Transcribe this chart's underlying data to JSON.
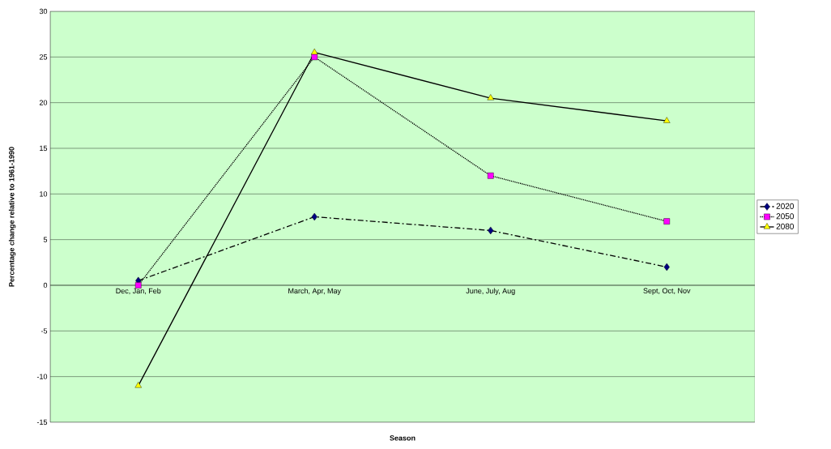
{
  "chart_data": {
    "type": "line",
    "xlabel": "Season",
    "ylabel": "Percentage change relative to 1961-1990",
    "categories": [
      "Dec, Jan, Feb",
      "March, Apr, May",
      "June, July, Aug",
      "Sept, Oct, Nov"
    ],
    "series": [
      {
        "name": "2020",
        "color": "#000080",
        "marker": "diamond",
        "line_style": "dashdot",
        "values": [
          0.5,
          7.5,
          6,
          2
        ]
      },
      {
        "name": "2050",
        "color": "#ff00ff",
        "marker": "square",
        "line_style": "dotted",
        "values": [
          0,
          25,
          12,
          7
        ]
      },
      {
        "name": "2080",
        "color": "#ffff00",
        "marker": "triangle",
        "line_style": "solid",
        "values": [
          -11,
          25.5,
          20.5,
          18
        ]
      }
    ],
    "ylim": [
      -15,
      30
    ],
    "yticks": [
      -15,
      -10,
      -5,
      0,
      5,
      10,
      15,
      20,
      25,
      30
    ],
    "grid": "y",
    "legend": "right"
  }
}
